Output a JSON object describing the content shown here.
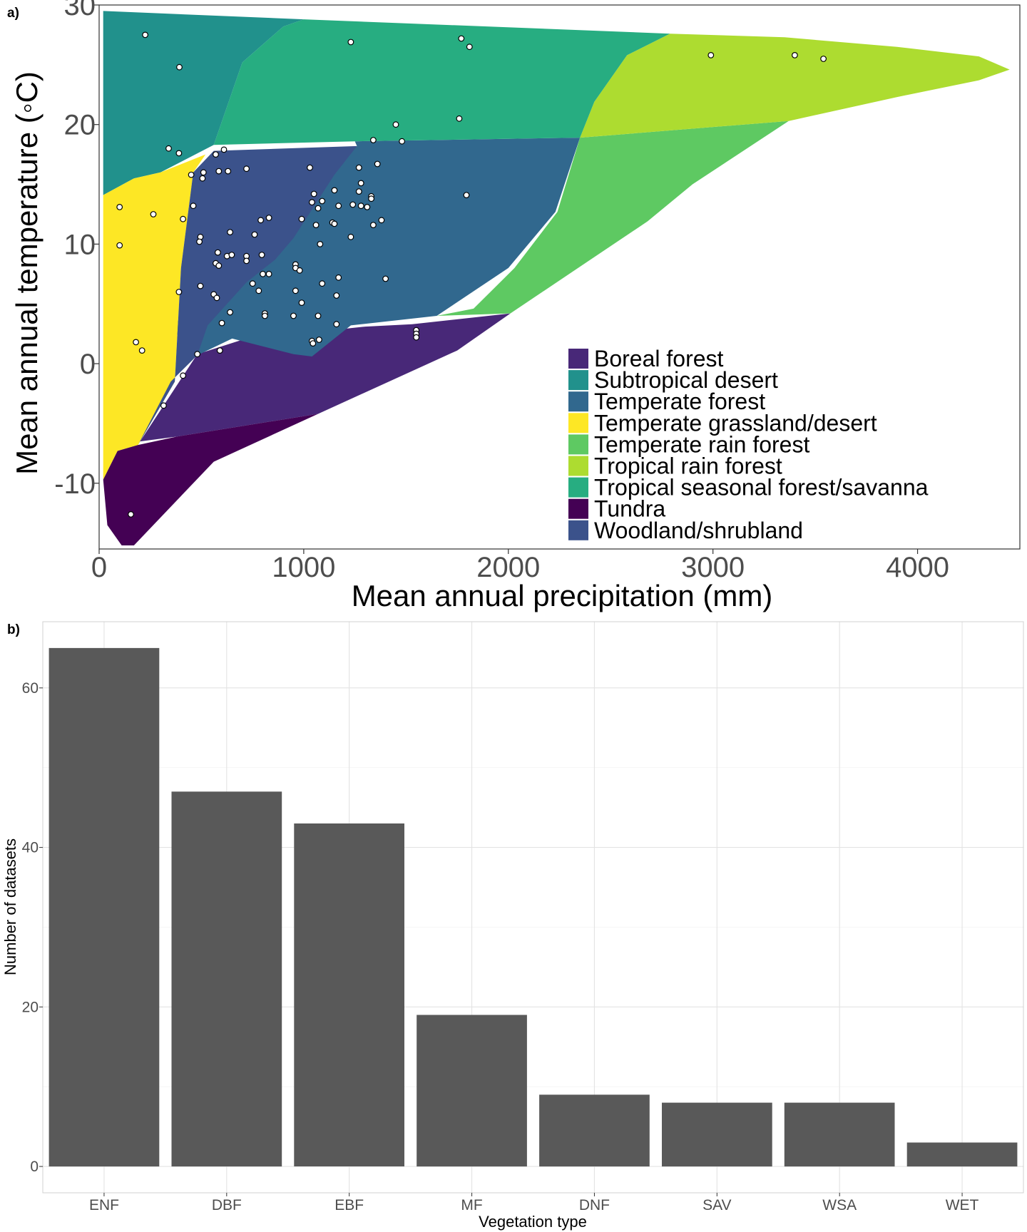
{
  "chart_data": [
    {
      "panel_label": "a)",
      "type": "scatter",
      "xlabel": "Mean annual precipitation (mm)",
      "ylabel": "Mean annual temperature (◦C)",
      "xlim": [
        0,
        4500
      ],
      "ylim": [
        -15.5,
        30
      ],
      "x_ticks": [
        "0",
        "1000",
        "2000",
        "3000",
        "4000"
      ],
      "y_ticks": [
        "-10",
        "0",
        "10",
        "20",
        "30"
      ],
      "grid": false,
      "legend_position": "bottom-right",
      "biomes": [
        {
          "name": "Boreal forest",
          "color": "#482878",
          "polygon": [
            [
              200,
              -6.5
            ],
            [
              480,
              0.8
            ],
            [
              700,
              2.0
            ],
            [
              1300,
              3.1
            ],
            [
              1530,
              3.3
            ],
            [
              2010,
              4.2
            ],
            [
              1750,
              1.1
            ],
            [
              1070,
              -4.2
            ],
            [
              380,
              -6.1
            ]
          ]
        },
        {
          "name": "Subtropical desert",
          "color": "#21918C",
          "polygon": [
            [
              20,
              29.5
            ],
            [
              1000,
              28.8
            ],
            [
              900,
              28.2
            ],
            [
              700,
              25.2
            ],
            [
              560,
              18.3
            ],
            [
              300,
              16.0
            ],
            [
              170,
              15.5
            ],
            [
              20,
              14.1
            ]
          ]
        },
        {
          "name": "Temperate forest",
          "color": "#31688E",
          "polygon": [
            [
              1250,
              18.6
            ],
            [
              2350,
              18.9
            ],
            [
              2230,
              12.7
            ],
            [
              2000,
              8.0
            ],
            [
              1650,
              4.0
            ],
            [
              1230,
              3.2
            ],
            [
              1040,
              0.6
            ],
            [
              950,
              0.8
            ],
            [
              650,
              2.1
            ],
            [
              480,
              0.7
            ],
            [
              350,
              3.0
            ],
            [
              1260,
              18.2
            ]
          ]
        },
        {
          "name": "Temperate grassland/desert",
          "color": "#FDE725",
          "polygon": [
            [
              20,
              14.1
            ],
            [
              170,
              15.5
            ],
            [
              300,
              16.0
            ],
            [
              520,
              17.5
            ],
            [
              460,
              16.0
            ],
            [
              400,
              8.0
            ],
            [
              370,
              -1.5
            ],
            [
              190,
              -6.8
            ],
            [
              90,
              -7.3
            ],
            [
              20,
              -9.7
            ]
          ]
        },
        {
          "name": "Temperate rain forest",
          "color": "#5EC962",
          "polygon": [
            [
              2350,
              18.9
            ],
            [
              3370,
              20.3
            ],
            [
              2900,
              15.0
            ],
            [
              2680,
              11.9
            ],
            [
              2010,
              4.2
            ],
            [
              1650,
              4.0
            ],
            [
              1830,
              4.6
            ],
            [
              2030,
              8.0
            ],
            [
              2240,
              12.7
            ]
          ]
        },
        {
          "name": "Tropical rain forest",
          "color": "#ADDC30",
          "polygon": [
            [
              2790,
              27.6
            ],
            [
              3350,
              27.3
            ],
            [
              3900,
              26.5
            ],
            [
              4300,
              25.7
            ],
            [
              4450,
              24.6
            ],
            [
              4300,
              23.7
            ],
            [
              3900,
              22.3
            ],
            [
              3370,
              20.3
            ],
            [
              2350,
              18.9
            ],
            [
              2420,
              21.9
            ],
            [
              2580,
              25.8
            ]
          ]
        },
        {
          "name": "Tropical seasonal forest/savanna",
          "color": "#27AD81",
          "polygon": [
            [
              1000,
              28.8
            ],
            [
              2790,
              27.6
            ],
            [
              2580,
              25.8
            ],
            [
              2420,
              21.9
            ],
            [
              2350,
              18.9
            ],
            [
              1250,
              18.6
            ],
            [
              560,
              18.3
            ],
            [
              700,
              25.2
            ],
            [
              900,
              28.2
            ]
          ]
        },
        {
          "name": "Tundra",
          "color": "#440154",
          "polygon": [
            [
              20,
              -9.7
            ],
            [
              90,
              -7.3
            ],
            [
              190,
              -6.8
            ],
            [
              380,
              -6.1
            ],
            [
              1070,
              -4.2
            ],
            [
              560,
              -8.2
            ],
            [
              170,
              -15.2
            ],
            [
              110,
              -15.2
            ],
            [
              40,
              -13.5
            ]
          ]
        },
        {
          "name": "Woodland/shrubland",
          "color": "#3B528B",
          "polygon": [
            [
              560,
              17.8
            ],
            [
              1260,
              18.2
            ],
            [
              1150,
              15.8
            ],
            [
              950,
              10.5
            ],
            [
              860,
              8.7
            ],
            [
              720,
              6.8
            ],
            [
              530,
              3.2
            ],
            [
              480,
              0.7
            ],
            [
              350,
              -1.5
            ],
            [
              190,
              -6.8
            ],
            [
              370,
              -1.5
            ],
            [
              400,
              8.0
            ],
            [
              460,
              16.0
            ]
          ]
        }
      ],
      "points": [
        [
          225,
          27.5
        ],
        [
          392,
          24.8
        ],
        [
          1230,
          26.9
        ],
        [
          1770,
          27.2
        ],
        [
          1810,
          26.5
        ],
        [
          2990,
          25.8
        ],
        [
          3400,
          25.8
        ],
        [
          3540,
          25.5
        ],
        [
          1760,
          20.5
        ],
        [
          1450,
          20.0
        ],
        [
          1340,
          18.7
        ],
        [
          1480,
          18.6
        ],
        [
          340,
          18.0
        ],
        [
          390,
          17.6
        ],
        [
          610,
          17.9
        ],
        [
          570,
          17.5
        ],
        [
          1360,
          16.7
        ],
        [
          1270,
          16.4
        ],
        [
          450,
          15.8
        ],
        [
          510,
          16.0
        ],
        [
          505,
          15.5
        ],
        [
          585,
          16.1
        ],
        [
          630,
          16.1
        ],
        [
          720,
          16.3
        ],
        [
          1030,
          16.4
        ],
        [
          1280,
          15.1
        ],
        [
          1270,
          14.4
        ],
        [
          1330,
          14.0
        ],
        [
          1330,
          13.8
        ],
        [
          1150,
          14.5
        ],
        [
          1050,
          14.2
        ],
        [
          1040,
          13.5
        ],
        [
          1090,
          13.6
        ],
        [
          1070,
          13.0
        ],
        [
          1280,
          13.2
        ],
        [
          1310,
          13.1
        ],
        [
          1240,
          13.3
        ],
        [
          1170,
          13.2
        ],
        [
          100,
          13.1
        ],
        [
          265,
          12.5
        ],
        [
          410,
          12.1
        ],
        [
          460,
          13.2
        ],
        [
          790,
          12.0
        ],
        [
          830,
          12.2
        ],
        [
          990,
          12.1
        ],
        [
          1380,
          12.0
        ],
        [
          1140,
          11.8
        ],
        [
          1150,
          11.7
        ],
        [
          1340,
          11.6
        ],
        [
          1060,
          11.6
        ],
        [
          640,
          11.0
        ],
        [
          760,
          10.8
        ],
        [
          495,
          10.6
        ],
        [
          490,
          10.2
        ],
        [
          1230,
          10.6
        ],
        [
          1080,
          10.0
        ],
        [
          100,
          9.9
        ],
        [
          580,
          9.3
        ],
        [
          625,
          9.0
        ],
        [
          648,
          9.1
        ],
        [
          720,
          9.0
        ],
        [
          795,
          9.1
        ],
        [
          720,
          8.6
        ],
        [
          570,
          8.4
        ],
        [
          585,
          8.2
        ],
        [
          960,
          8.3
        ],
        [
          960,
          8.0
        ],
        [
          980,
          7.8
        ],
        [
          1170,
          7.2
        ],
        [
          1400,
          7.1
        ],
        [
          800,
          7.5
        ],
        [
          830,
          7.5
        ],
        [
          1090,
          6.7
        ],
        [
          750,
          6.7
        ],
        [
          495,
          6.5
        ],
        [
          390,
          6.0
        ],
        [
          780,
          6.1
        ],
        [
          960,
          6.1
        ],
        [
          560,
          5.8
        ],
        [
          575,
          5.5
        ],
        [
          1160,
          5.7
        ],
        [
          990,
          5.1
        ],
        [
          810,
          4.2
        ],
        [
          810,
          4.0
        ],
        [
          950,
          4.0
        ],
        [
          1070,
          4.0
        ],
        [
          640,
          4.3
        ],
        [
          600,
          3.4
        ],
        [
          1160,
          3.3
        ],
        [
          1550,
          2.8
        ],
        [
          1550,
          2.5
        ],
        [
          1550,
          2.2
        ],
        [
          1040,
          1.9
        ],
        [
          1045,
          1.7
        ],
        [
          1075,
          2.0
        ],
        [
          180,
          1.8
        ],
        [
          210,
          1.1
        ],
        [
          480,
          0.8
        ],
        [
          590,
          1.1
        ],
        [
          410,
          -1.0
        ],
        [
          315,
          -3.5
        ],
        [
          155,
          -12.6
        ],
        [
          1795,
          14.1
        ]
      ]
    },
    {
      "panel_label": "b)",
      "type": "bar",
      "xlabel": "Vegetation type",
      "ylabel": "Number of datasets",
      "categories": [
        "ENF",
        "DBF",
        "EBF",
        "MF",
        "DNF",
        "SAV",
        "WSA",
        "WET"
      ],
      "values": [
        65,
        47,
        43,
        19,
        9,
        8,
        8,
        3
      ],
      "ylim": [
        -3.3,
        68.3
      ],
      "y_ticks": [
        "0",
        "20",
        "40",
        "60"
      ],
      "bar_color": "#595959",
      "grid": true
    }
  ]
}
